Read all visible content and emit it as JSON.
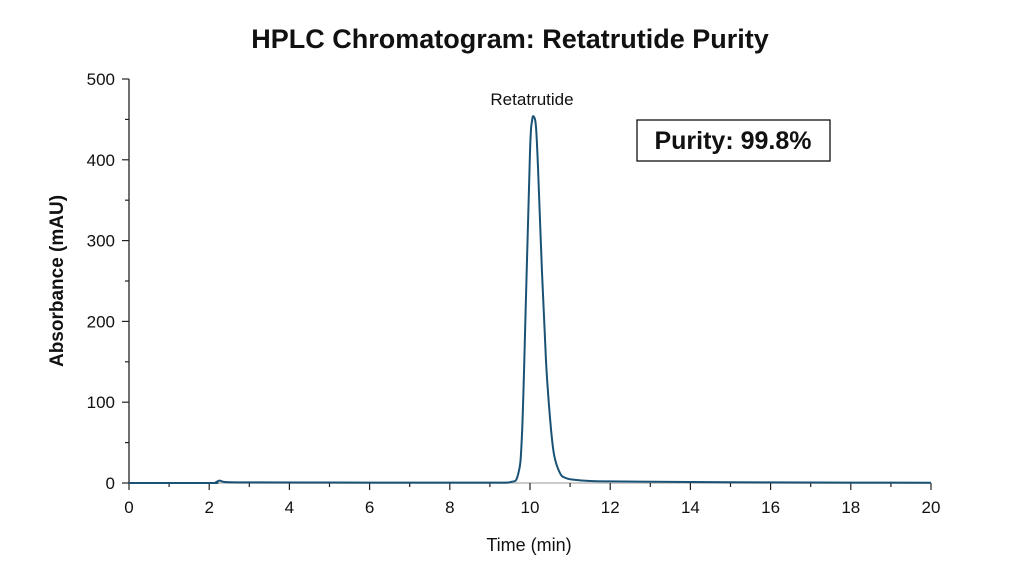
{
  "chart_data": {
    "type": "line",
    "title": "HPLC Chromatogram: Retatrutide Purity",
    "xlabel": "Time (min)",
    "ylabel": "Absorbance (mAU)",
    "xlim": [
      0,
      20
    ],
    "ylim": [
      0,
      500
    ],
    "x_ticks": [
      "0",
      "2",
      "4",
      "6",
      "8",
      "10",
      "12",
      "14",
      "16",
      "18",
      "20"
    ],
    "y_ticks": [
      "0",
      "100",
      "200",
      "300",
      "400",
      "500"
    ],
    "grid": false,
    "line_color": "#1a5276",
    "series": [
      {
        "x": [
          0,
          2.0,
          2.15,
          2.25,
          2.35,
          2.5,
          3,
          5,
          7,
          9,
          9.5,
          9.7,
          9.8,
          9.9,
          10.0,
          10.05,
          10.1,
          10.15,
          10.2,
          10.3,
          10.4,
          10.5,
          10.6,
          10.75,
          10.9,
          11.1,
          11.5,
          12,
          14,
          16,
          18,
          20
        ],
        "values": [
          0,
          0,
          0.5,
          3,
          1.5,
          1,
          0.8,
          0.6,
          0.5,
          0.5,
          1,
          10,
          60,
          230,
          410,
          448,
          453,
          440,
          390,
          260,
          150,
          80,
          35,
          12,
          6,
          4,
          2.5,
          2,
          1.2,
          0.8,
          0.5,
          0.3
        ]
      }
    ],
    "annotations": [
      {
        "text": "Retatrutide",
        "x": 10.1,
        "y": 453
      },
      {
        "text": "Purity: 99.8%",
        "boxed": true,
        "placement": "top-right"
      }
    ]
  }
}
